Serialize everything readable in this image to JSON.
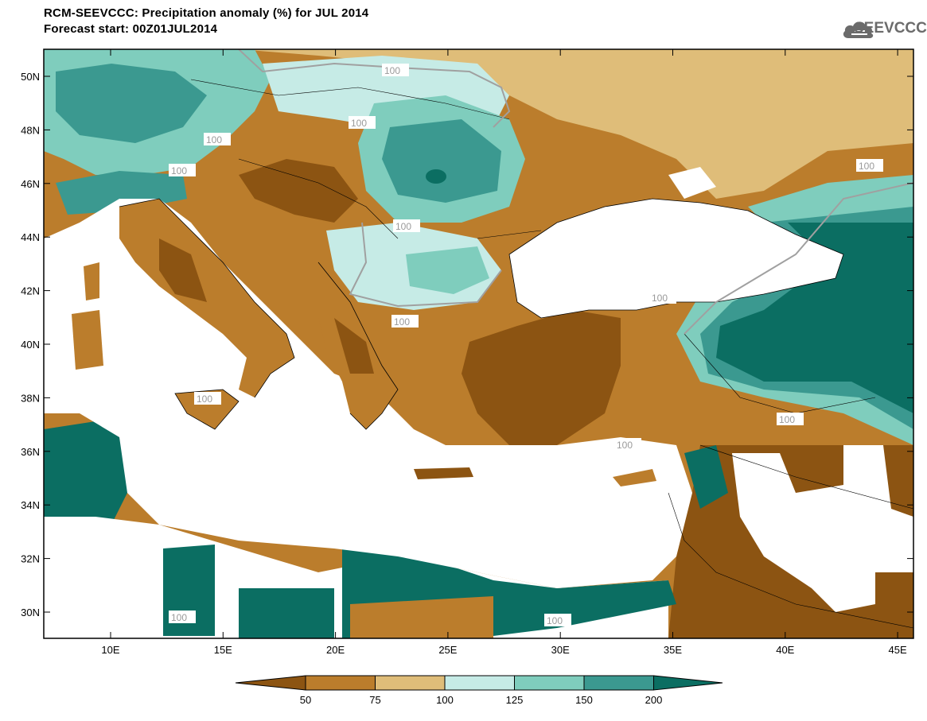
{
  "header": {
    "title_line1": "RCM-SEEVCCC: Precipitation anomaly (%) for JUL 2014",
    "title_line2": "Forecast start: 00Z01JUL2014"
  },
  "logo": {
    "text": "SEEVCCC",
    "icon": "cloud-icon"
  },
  "map": {
    "lat_labels": [
      "50N",
      "48N",
      "46N",
      "44N",
      "42N",
      "40N",
      "38N",
      "36N",
      "34N",
      "32N",
      "30N"
    ],
    "lon_labels": [
      "10E",
      "15E",
      "20E",
      "25E",
      "30E",
      "35E",
      "40E",
      "45E"
    ],
    "contour_label": "100"
  },
  "colorbar": {
    "tick_labels": [
      "50",
      "75",
      "100",
      "125",
      "150",
      "200"
    ],
    "colors": [
      "#8c5412",
      "#bb7d2c",
      "#dfbd79",
      "#c6ebe6",
      "#7fcdbd",
      "#3b9990",
      "#0b6e62"
    ]
  },
  "colors": {
    "land_dry_dark": "#8c5412",
    "land_dry": "#bb7d2c",
    "land_dry_light": "#dfbd79",
    "land_wet_light": "#c6ebe6",
    "land_wet": "#7fcdbd",
    "land_wet_mid": "#3b9990",
    "land_wet_dark": "#0b6e62",
    "sea": "#ffffff"
  }
}
